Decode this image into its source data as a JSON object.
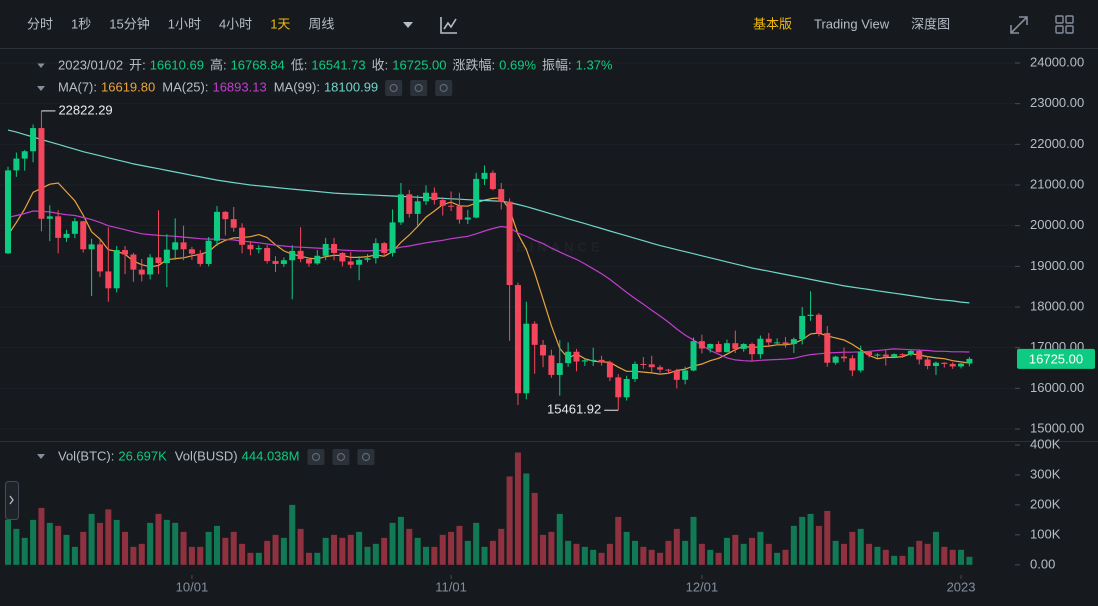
{
  "toolbar": {
    "intervals": [
      "分时",
      "1秒",
      "15分钟",
      "1小时",
      "4小时",
      "1天",
      "周线"
    ],
    "active": 5,
    "views": [
      "基本版",
      "Trading View",
      "深度图"
    ],
    "active_view": 0
  },
  "chart_data": {
    "type": "candlestick",
    "info": {
      "date": "2023/01/02",
      "fields": [
        {
          "label": "开:",
          "value": "16610.69"
        },
        {
          "label": "高:",
          "value": "16768.84"
        },
        {
          "label": "低:",
          "value": "16541.73"
        },
        {
          "label": "收:",
          "value": "16725.00"
        },
        {
          "label": "涨跌幅:",
          "value": "0.69%"
        },
        {
          "label": "振幅:",
          "value": "1.37%"
        }
      ]
    },
    "watermark": "BINANCE",
    "categories": [
      null,
      null,
      null,
      null,
      null,
      null,
      null,
      null,
      null,
      null,
      null,
      null,
      null,
      null,
      null,
      null,
      null,
      null,
      null,
      null,
      null,
      null,
      "10/01",
      null,
      null,
      null,
      null,
      null,
      null,
      null,
      null,
      null,
      null,
      null,
      null,
      null,
      null,
      null,
      null,
      null,
      null,
      null,
      null,
      null,
      null,
      null,
      null,
      null,
      null,
      null,
      null,
      null,
      null,
      "11/01",
      null,
      null,
      null,
      null,
      null,
      null,
      null,
      null,
      null,
      null,
      null,
      null,
      null,
      null,
      null,
      null,
      null,
      null,
      null,
      null,
      null,
      null,
      null,
      null,
      null,
      null,
      null,
      null,
      null,
      "12/01",
      null,
      null,
      null,
      null,
      null,
      null,
      null,
      null,
      null,
      null,
      null,
      null,
      null,
      null,
      null,
      null,
      null,
      null,
      null,
      null,
      null,
      null,
      null,
      null,
      null,
      null,
      null,
      null,
      null,
      null,
      "2023",
      null
    ],
    "open": [
      19320,
      21360,
      21650,
      21830,
      22400,
      20170,
      20230,
      19700,
      19800,
      20110,
      19420,
      19540,
      18875,
      18460,
      19400,
      19290,
      18920,
      18800,
      19220,
      19080,
      19410,
      19590,
      19420,
      19310,
      19060,
      19630,
      20340,
      20160,
      19950,
      19530,
      19420,
      19450,
      19130,
      19060,
      19150,
      19380,
      19180,
      19070,
      19260,
      19550,
      19330,
      19120,
      19040,
      19160,
      19200,
      19570,
      19330,
      20080,
      20770,
      20290,
      20600,
      20810,
      20630,
      20490,
      20480,
      20150,
      20200,
      21150,
      21300,
      20900,
      20590,
      18540,
      15880,
      17590,
      17070,
      16810,
      16330,
      16620,
      16900,
      16660,
      16690,
      16700,
      16640,
      16270,
      15780,
      16230,
      16600,
      16590,
      16520,
      16460,
      16440,
      16210,
      16440,
      17160,
      16980,
      17090,
      16890,
      17110,
      16970,
      17090,
      16840,
      17220,
      17130,
      17130,
      17090,
      17210,
      17780,
      17810,
      17360,
      16630,
      16780,
      16740,
      16440,
      16900,
      16820,
      16830,
      16780,
      16840,
      16830,
      16920,
      16710,
      16550,
      16630,
      16600,
      16540,
      16610.69
    ],
    "high": [
      21450,
      21800,
      21860,
      22490,
      22822.29,
      20500,
      20380,
      19900,
      20190,
      20120,
      19680,
      19640,
      19960,
      19500,
      19500,
      19330,
      19180,
      19300,
      20380,
      19790,
      20180,
      20000,
      19480,
      19400,
      19720,
      20480,
      20360,
      20460,
      20060,
      19620,
      19520,
      19520,
      19250,
      19220,
      19520,
      19960,
      19220,
      19400,
      19700,
      19700,
      19350,
      19350,
      19250,
      19300,
      19690,
      19600,
      20400,
      21050,
      20880,
      20750,
      20990,
      20940,
      20700,
      20840,
      20810,
      20390,
      21300,
      21480,
      21360,
      21050,
      20670,
      18600,
      18130,
      17650,
      17190,
      16950,
      17190,
      17130,
      16970,
      16730,
      17000,
      16800,
      16680,
      16350,
      16310,
      16660,
      16770,
      16800,
      16570,
      16480,
      16480,
      16530,
      17250,
      17320,
      17100,
      17160,
      17200,
      17420,
      17110,
      17130,
      17300,
      17360,
      17230,
      17260,
      17250,
      18000,
      18387,
      17850,
      17530,
      16800,
      17000,
      16820,
      17050,
      16920,
      16860,
      16950,
      16860,
      16860,
      16950,
      16960,
      16790,
      16660,
      16640,
      16640,
      16620,
      16768.84
    ],
    "low": [
      19300,
      21200,
      21350,
      21560,
      19860,
      19620,
      19320,
      19600,
      19690,
      19340,
      18270,
      18740,
      18130,
      18360,
      18810,
      18620,
      18630,
      18680,
      18810,
      18490,
      19160,
      19150,
      19160,
      19000,
      19000,
      19500,
      19760,
      19850,
      19320,
      19270,
      19320,
      19070,
      18860,
      18990,
      18190,
      19100,
      18990,
      19040,
      19150,
      19150,
      19000,
      18950,
      18660,
      19100,
      19070,
      19240,
      19240,
      20020,
      20200,
      20000,
      20510,
      20520,
      20250,
      20360,
      20050,
      20040,
      20180,
      21000,
      20870,
      20400,
      17170,
      15590,
      15730,
      16360,
      16520,
      16260,
      15820,
      16530,
      16420,
      16550,
      16550,
      16560,
      16180,
      15461.92,
      15700,
      16160,
      16480,
      16400,
      16390,
      16360,
      16000,
      16100,
      16420,
      16860,
      16880,
      16880,
      16880,
      16870,
      16900,
      16680,
      16730,
      17060,
      17090,
      17000,
      16870,
      17080,
      17660,
      17280,
      16530,
      16580,
      16650,
      16300,
      16390,
      16760,
      16750,
      16560,
      16740,
      16750,
      16790,
      16590,
      16470,
      16330,
      16510,
      16480,
      16490,
      16541.73
    ],
    "close": [
      21360,
      21650,
      21830,
      22400,
      20170,
      20230,
      19700,
      19800,
      20110,
      19420,
      19540,
      18875,
      18460,
      19400,
      19290,
      18920,
      18800,
      19220,
      19080,
      19410,
      19590,
      19420,
      19310,
      19060,
      19630,
      20340,
      20160,
      19950,
      19530,
      19420,
      19450,
      19130,
      19060,
      19150,
      19380,
      19180,
      19070,
      19260,
      19550,
      19330,
      19120,
      19040,
      19160,
      19200,
      19570,
      19330,
      20080,
      20770,
      20290,
      20600,
      20810,
      20630,
      20490,
      20480,
      20150,
      20200,
      21150,
      21300,
      20900,
      20590,
      18540,
      15880,
      17590,
      17070,
      16810,
      16330,
      16620,
      16900,
      16660,
      16690,
      16700,
      16640,
      16270,
      15780,
      16230,
      16600,
      16590,
      16520,
      16460,
      16440,
      16210,
      16440,
      17160,
      16980,
      17090,
      16890,
      17110,
      16970,
      17090,
      16840,
      17220,
      17130,
      17130,
      17090,
      17210,
      17780,
      17810,
      17360,
      16630,
      16780,
      16740,
      16440,
      16900,
      16820,
      16830,
      16780,
      16840,
      16830,
      16920,
      16710,
      16550,
      16630,
      16600,
      16540,
      16610,
      16725
    ],
    "up_color": "#0ecb81",
    "down_color": "#f6465d",
    "series": [
      {
        "name": "MA(7):",
        "legend_value": "16619.80",
        "color": "#eba33d",
        "values": [
          19770,
          20080,
          20410,
          20820,
          20920,
          21020,
          21050,
          20830,
          20610,
          20260,
          19850,
          19670,
          19410,
          19370,
          19300,
          19130,
          19040,
          18990,
          19020,
          19160,
          19190,
          19210,
          19260,
          19300,
          19360,
          19540,
          19640,
          19700,
          19710,
          19730,
          19780,
          19710,
          19530,
          19380,
          19300,
          19250,
          19200,
          19180,
          19240,
          19270,
          19270,
          19220,
          19220,
          19240,
          19280,
          19250,
          19360,
          19590,
          19770,
          19980,
          20210,
          20360,
          20520,
          20580,
          20490,
          20480,
          20560,
          20630,
          20670,
          20680,
          20400,
          19790,
          19420,
          18840,
          18200,
          17540,
          16980,
          16740,
          16850,
          16730,
          16670,
          16650,
          16640,
          16520,
          16420,
          16420,
          16400,
          16380,
          16350,
          16370,
          16440,
          16470,
          16550,
          16600,
          16680,
          16740,
          16840,
          16950,
          17040,
          17000,
          17030,
          17040,
          17070,
          17070,
          17100,
          17200,
          17340,
          17360,
          17290,
          17240,
          17190,
          17080,
          16950,
          16810,
          16730,
          16760,
          16760,
          16780,
          16850,
          16820,
          16780,
          16750,
          16730,
          16680,
          16650,
          16619.8
        ]
      },
      {
        "name": "MA(25):",
        "legend_value": "16893.13",
        "color": "#c23dce",
        "values": [
          20200,
          20250,
          20300,
          20360,
          20350,
          20340,
          20300,
          20270,
          20250,
          20200,
          20150,
          20080,
          20000,
          19950,
          19900,
          19850,
          19800,
          19780,
          19760,
          19750,
          19740,
          19720,
          19700,
          19680,
          19670,
          19670,
          19660,
          19650,
          19620,
          19600,
          19580,
          19550,
          19520,
          19500,
          19480,
          19470,
          19460,
          19450,
          19440,
          19420,
          19400,
          19390,
          19380,
          19380,
          19390,
          19390,
          19420,
          19470,
          19500,
          19540,
          19580,
          19610,
          19640,
          19680,
          19710,
          19740,
          19800,
          19870,
          19930,
          19980,
          19950,
          19820,
          19740,
          19640,
          19560,
          19450,
          19350,
          19260,
          19170,
          19060,
          18940,
          18820,
          18680,
          18520,
          18360,
          18210,
          18070,
          17920,
          17780,
          17630,
          17460,
          17310,
          17190,
          17060,
          16930,
          16840,
          16750,
          16700,
          16680,
          16670,
          16690,
          16700,
          16710,
          16720,
          16740,
          16790,
          16830,
          16850,
          16870,
          16880,
          16890,
          16890,
          16900,
          16910,
          16930,
          16950,
          16970,
          16960,
          16950,
          16940,
          16930,
          16910,
          16910,
          16900,
          16900,
          16893.13
        ]
      },
      {
        "name": "MA(99):",
        "legend_value": "18100.99",
        "color": "#6fd6c9",
        "values": [
          22350,
          22300,
          22240,
          22180,
          22120,
          22060,
          22000,
          21940,
          21880,
          21820,
          21770,
          21720,
          21670,
          21620,
          21570,
          21520,
          21480,
          21440,
          21400,
          21360,
          21320,
          21280,
          21240,
          21200,
          21160,
          21120,
          21090,
          21060,
          21030,
          21000,
          20980,
          20960,
          20940,
          20920,
          20900,
          20880,
          20860,
          20840,
          20820,
          20800,
          20790,
          20780,
          20770,
          20760,
          20750,
          20740,
          20730,
          20720,
          20710,
          20700,
          20690,
          20680,
          20670,
          20660,
          20650,
          20640,
          20630,
          20620,
          20610,
          20600,
          20570,
          20520,
          20470,
          20410,
          20350,
          20290,
          20230,
          20170,
          20110,
          20050,
          19990,
          19930,
          19870,
          19810,
          19750,
          19690,
          19630,
          19570,
          19510,
          19460,
          19410,
          19360,
          19310,
          19260,
          19210,
          19160,
          19110,
          19060,
          19010,
          18960,
          18920,
          18880,
          18840,
          18800,
          18760,
          18720,
          18680,
          18640,
          18600,
          18560,
          18520,
          18490,
          18460,
          18430,
          18400,
          18370,
          18340,
          18310,
          18280,
          18250,
          18220,
          18190,
          18170,
          18150,
          18120,
          18100.99
        ]
      }
    ],
    "ylim": [
      14730,
      24320
    ],
    "yticks": [
      {
        "value": 15000,
        "label": "15000.00"
      },
      {
        "value": 16000,
        "label": "16000.00"
      },
      {
        "value": 17000,
        "label": "17000.00"
      },
      {
        "value": 18000,
        "label": "18000.00"
      },
      {
        "value": 19000,
        "label": "19000.00"
      },
      {
        "value": 20000,
        "label": "20000.00"
      },
      {
        "value": 21000,
        "label": "21000.00"
      },
      {
        "value": 22000,
        "label": "22000.00"
      },
      {
        "value": 23000,
        "label": "23000.00"
      },
      {
        "value": 24000,
        "label": "24000.00"
      }
    ],
    "last_price_label": "16725.00",
    "grid": true,
    "volume": {
      "legend": [
        {
          "label": "Vol(BTC):",
          "value": "26.697K"
        },
        {
          "label": "Vol(BUSD)",
          "value": "444.038M"
        }
      ],
      "values": [
        150000,
        120000,
        90000,
        150000,
        190000,
        140000,
        130000,
        100000,
        60000,
        110000,
        170000,
        140000,
        185000,
        150000,
        110000,
        60000,
        70000,
        140000,
        170000,
        150000,
        140000,
        110000,
        60000,
        60000,
        110000,
        130000,
        90000,
        110000,
        70000,
        40000,
        40000,
        80000,
        100000,
        90000,
        200000,
        120000,
        40000,
        40000,
        90000,
        100000,
        90000,
        100000,
        110000,
        60000,
        70000,
        90000,
        140000,
        160000,
        120000,
        90000,
        60000,
        60000,
        100000,
        110000,
        130000,
        80000,
        140000,
        60000,
        80000,
        120000,
        295000,
        375000,
        305000,
        240000,
        100000,
        110000,
        170000,
        80000,
        70000,
        60000,
        50000,
        40000,
        70000,
        160000,
        110000,
        80000,
        60000,
        50000,
        40000,
        80000,
        120000,
        80000,
        160000,
        70000,
        50000,
        40000,
        90000,
        100000,
        70000,
        90000,
        110000,
        70000,
        40000,
        50000,
        130000,
        160000,
        170000,
        130000,
        180000,
        80000,
        70000,
        110000,
        120000,
        70000,
        60000,
        50000,
        30000,
        30000,
        60000,
        80000,
        70000,
        110000,
        60000,
        50000,
        50000,
        26697
      ],
      "ylim": [
        -34000,
        410000
      ],
      "yticks": [
        {
          "value": 0,
          "label": "0.00"
        },
        {
          "value": 100000,
          "label": "100K"
        },
        {
          "value": 200000,
          "label": "200K"
        },
        {
          "value": 300000,
          "label": "300K"
        },
        {
          "value": 400000,
          "label": "400K"
        }
      ]
    }
  }
}
